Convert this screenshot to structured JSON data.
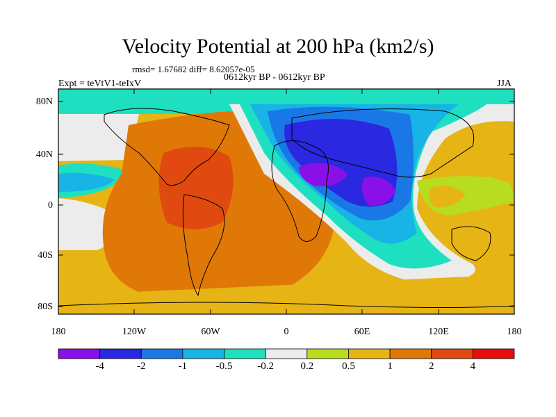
{
  "title": "Velocity Potential at 200 hPa (km2/s)",
  "stats": "rmsd= 1.67682 diff= 8.62057e-05",
  "experiment": "Expt = teVtV1-teIxV",
  "period": "0612kyr BP - 0612kyr BP",
  "season": "JJA",
  "y_ticks": [
    "80N",
    "40N",
    "0",
    "40S",
    "80S"
  ],
  "x_ticks": [
    "180",
    "120W",
    "60W",
    "0",
    "60E",
    "120E",
    "180"
  ],
  "colorbar": {
    "labels": [
      "-4",
      "-2",
      "-1",
      "-0.5",
      "-0.2",
      "0.2",
      "0.5",
      "1",
      "2",
      "4"
    ],
    "colors": [
      "#8a10e8",
      "#2a28e0",
      "#1a78e6",
      "#18b4e6",
      "#1ee0c0",
      "#ececec",
      "#b8dc1e",
      "#e6b414",
      "#e07808",
      "#e04a10",
      "#e80c0c"
    ]
  }
}
